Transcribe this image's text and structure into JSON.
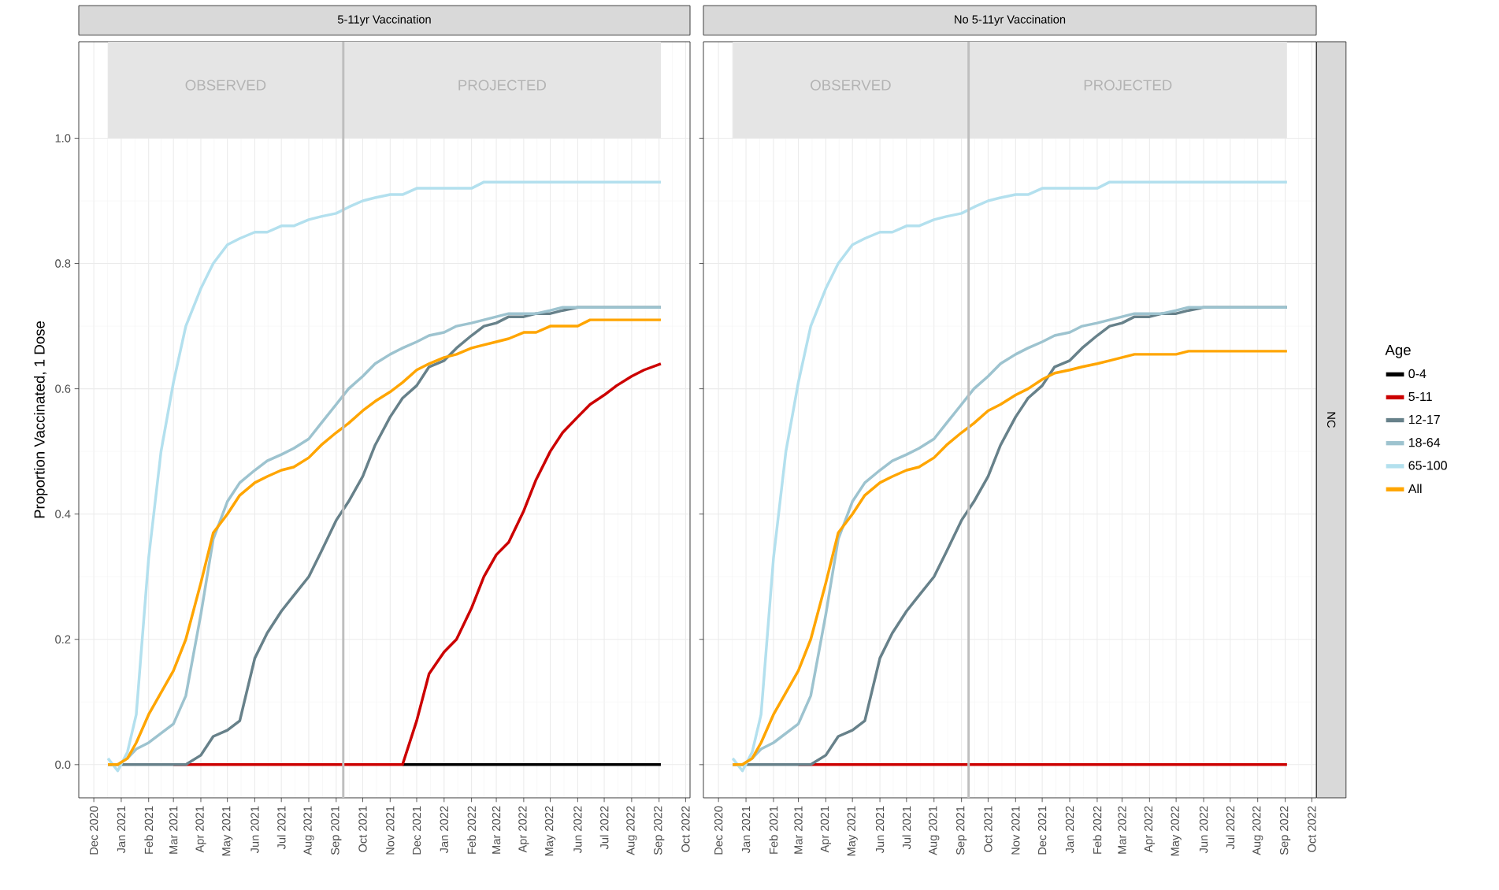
{
  "chart_data": [
    {
      "type": "line",
      "title": "5-11yr Vaccination",
      "ylabel": "Proportion Vaccinated, 1 Dose",
      "x": [
        "2020-12-17",
        "2020-12-28",
        "2021-01-08",
        "2021-01-18",
        "2021-02-01",
        "2021-02-15",
        "2021-03-01",
        "2021-03-15",
        "2021-04-01",
        "2021-04-15",
        "2021-05-01",
        "2021-05-15",
        "2021-06-01",
        "2021-06-15",
        "2021-07-01",
        "2021-07-15",
        "2021-08-01",
        "2021-08-15",
        "2021-09-01",
        "2021-09-15",
        "2021-10-01",
        "2021-10-15",
        "2021-11-01",
        "2021-11-15",
        "2021-12-01",
        "2021-12-15",
        "2022-01-01",
        "2022-01-15",
        "2022-02-01",
        "2022-02-15",
        "2022-03-01",
        "2022-03-15",
        "2022-04-01",
        "2022-04-15",
        "2022-05-01",
        "2022-05-15",
        "2022-06-01",
        "2022-06-15",
        "2022-07-01",
        "2022-07-15",
        "2022-08-01",
        "2022-08-15",
        "2022-09-03"
      ],
      "series": [
        {
          "color": "#000000",
          "values": [
            null,
            null,
            null,
            null,
            null,
            null,
            null,
            null,
            null,
            null,
            null,
            null,
            null,
            null,
            null,
            null,
            null,
            null,
            null,
            null,
            null,
            null,
            null,
            0,
            0,
            0,
            0,
            0,
            0,
            0,
            0,
            0,
            0,
            0,
            0,
            0,
            0,
            0,
            0,
            0,
            0,
            0,
            0
          ]
        },
        {
          "color": "#cc0000",
          "values": [
            null,
            null,
            null,
            null,
            null,
            null,
            0,
            0,
            0,
            0,
            0,
            0,
            0,
            0,
            0,
            0,
            0,
            0,
            0,
            0,
            0,
            0,
            0,
            0,
            0.07,
            0.145,
            0.18,
            0.2,
            0.25,
            0.3,
            0.335,
            0.355,
            0.405,
            0.455,
            0.5,
            0.53,
            0.555,
            0.575,
            0.59,
            0.605,
            0.62,
            0.63,
            0.64
          ]
        },
        {
          "color": "#67818a",
          "values": [
            0,
            0,
            0,
            0,
            0,
            0,
            0,
            0,
            0.015,
            0.045,
            0.055,
            0.07,
            0.17,
            0.21,
            0.245,
            0.27,
            0.3,
            0.34,
            0.39,
            0.42,
            0.46,
            0.51,
            0.555,
            0.585,
            0.605,
            0.635,
            0.645,
            0.665,
            0.685,
            0.7,
            0.705,
            0.715,
            0.715,
            0.72,
            0.72,
            0.725,
            0.73,
            0.73,
            0.73,
            0.73,
            0.73,
            0.73,
            0.73
          ]
        },
        {
          "color": "#9dc3cf",
          "values": [
            0,
            0,
            0.01,
            0.025,
            0.035,
            0.05,
            0.065,
            0.11,
            0.24,
            0.36,
            0.42,
            0.45,
            0.47,
            0.485,
            0.495,
            0.505,
            0.52,
            0.545,
            0.575,
            0.6,
            0.62,
            0.64,
            0.655,
            0.665,
            0.675,
            0.685,
            0.69,
            0.7,
            0.705,
            0.71,
            0.715,
            0.72,
            0.72,
            0.72,
            0.725,
            0.73,
            0.73,
            0.73,
            0.73,
            0.73,
            0.73,
            0.73,
            0.73
          ]
        },
        {
          "color": "#b3e0ee",
          "values": [
            0.01,
            -0.01,
            0.02,
            0.08,
            0.33,
            0.5,
            0.61,
            0.7,
            0.76,
            0.8,
            0.83,
            0.84,
            0.85,
            0.85,
            0.86,
            0.86,
            0.87,
            0.875,
            0.88,
            0.89,
            0.9,
            0.905,
            0.91,
            0.91,
            0.92,
            0.92,
            0.92,
            0.92,
            0.92,
            0.93,
            0.93,
            0.93,
            0.93,
            0.93,
            0.93,
            0.93,
            0.93,
            0.93,
            0.93,
            0.93,
            0.93,
            0.93,
            0.93
          ]
        },
        {
          "color": "#ffa500",
          "values": [
            0,
            0,
            0.01,
            0.035,
            0.08,
            0.115,
            0.15,
            0.2,
            0.29,
            0.37,
            0.4,
            0.43,
            0.45,
            0.46,
            0.47,
            0.475,
            0.49,
            0.51,
            0.53,
            0.545,
            0.565,
            0.58,
            0.595,
            0.61,
            0.63,
            0.64,
            0.65,
            0.655,
            0.665,
            0.67,
            0.675,
            0.68,
            0.69,
            0.69,
            0.7,
            0.7,
            0.7,
            0.71,
            0.71,
            0.71,
            0.71,
            0.71,
            0.71
          ]
        }
      ],
      "xlim": [
        "2020-11-14",
        "2022-10-06"
      ],
      "xticks": [
        {
          "value": "2020-12-01",
          "label": "Dec 2020"
        },
        {
          "value": "2021-01-01",
          "label": "Jan 2021"
        },
        {
          "value": "2021-02-01",
          "label": "Feb 2021"
        },
        {
          "value": "2021-03-01",
          "label": "Mar 2021"
        },
        {
          "value": "2021-04-01",
          "label": "Apr 2021"
        },
        {
          "value": "2021-05-01",
          "label": "May 2021"
        },
        {
          "value": "2021-06-01",
          "label": "Jun 2021"
        },
        {
          "value": "2021-07-01",
          "label": "Jul 2021"
        },
        {
          "value": "2021-08-01",
          "label": "Aug 2021"
        },
        {
          "value": "2021-09-01",
          "label": "Sep 2021"
        },
        {
          "value": "2021-10-01",
          "label": "Oct 2021"
        },
        {
          "value": "2021-11-01",
          "label": "Nov 2021"
        },
        {
          "value": "2021-12-01",
          "label": "Dec 2021"
        },
        {
          "value": "2022-01-01",
          "label": "Jan 2022"
        },
        {
          "value": "2022-02-01",
          "label": "Feb 2022"
        },
        {
          "value": "2022-03-01",
          "label": "Mar 2022"
        },
        {
          "value": "2022-04-01",
          "label": "Apr 2022"
        },
        {
          "value": "2022-05-01",
          "label": "May 2022"
        },
        {
          "value": "2022-06-01",
          "label": "Jun 2022"
        },
        {
          "value": "2022-07-01",
          "label": "Jul 2022"
        },
        {
          "value": "2022-08-01",
          "label": "Aug 2022"
        },
        {
          "value": "2022-09-01",
          "label": "Sep 2022"
        },
        {
          "value": "2022-10-01",
          "label": "Oct 2022"
        }
      ],
      "ylim": [
        -0.053,
        1.154
      ],
      "yticks": [
        {
          "value": 0,
          "label": "0.0"
        },
        0.2,
        0.4,
        0.6,
        0.8,
        {
          "value": 1,
          "label": "1.0"
        }
      ],
      "grid": true,
      "bands": [
        {
          "axis": "x",
          "from": "2020-12-17",
          "to": "2021-09-09",
          "label": "OBSERVED",
          "color": "#e5e5e5"
        },
        {
          "axis": "x",
          "from": "2021-09-09",
          "to": "2022-09-03",
          "label": "PROJECTED",
          "color": "#e5e5e5"
        }
      ],
      "ref_lines": [
        {
          "axis": "x",
          "value": "2021-09-09",
          "color": "#bebebe"
        }
      ]
    },
    {
      "type": "line",
      "title": "No 5-11yr Vaccination",
      "legend_title": "Age",
      "legend": "right",
      "tick_labels": "x",
      "annotations": [
        "NC"
      ],
      "x": [
        "2020-12-17",
        "2020-12-28",
        "2021-01-08",
        "2021-01-18",
        "2021-02-01",
        "2021-02-15",
        "2021-03-01",
        "2021-03-15",
        "2021-04-01",
        "2021-04-15",
        "2021-05-01",
        "2021-05-15",
        "2021-06-01",
        "2021-06-15",
        "2021-07-01",
        "2021-07-15",
        "2021-08-01",
        "2021-08-15",
        "2021-09-01",
        "2021-09-15",
        "2021-10-01",
        "2021-10-15",
        "2021-11-01",
        "2021-11-15",
        "2021-12-01",
        "2021-12-15",
        "2022-01-01",
        "2022-01-15",
        "2022-02-01",
        "2022-02-15",
        "2022-03-01",
        "2022-03-15",
        "2022-04-01",
        "2022-04-15",
        "2022-05-01",
        "2022-05-15",
        "2022-06-01",
        "2022-06-15",
        "2022-07-01",
        "2022-07-15",
        "2022-08-01",
        "2022-08-15",
        "2022-09-03"
      ],
      "series": [
        {
          "name": "0-4",
          "color": "#000000",
          "values": [
            null,
            null,
            null,
            null,
            null,
            null,
            null,
            null,
            null,
            null,
            null,
            null,
            null,
            null,
            null,
            null,
            null,
            null,
            null,
            null,
            null,
            null,
            null,
            null,
            null,
            null,
            null,
            null,
            null,
            null,
            null,
            null,
            null,
            null,
            null,
            null,
            null,
            null,
            null,
            null,
            null,
            null,
            null
          ]
        },
        {
          "name": "5-11",
          "color": "#cc0000",
          "values": [
            null,
            null,
            null,
            null,
            null,
            null,
            0,
            0,
            0,
            0,
            0,
            0,
            0,
            0,
            0,
            0,
            0,
            0,
            0,
            0,
            0,
            0,
            0,
            0,
            0,
            0,
            0,
            0,
            0,
            0,
            0,
            0,
            0,
            0,
            0,
            0,
            0,
            0,
            0,
            0,
            0,
            0,
            0
          ]
        },
        {
          "name": "12-17",
          "color": "#67818a",
          "values": [
            0,
            0,
            0,
            0,
            0,
            0,
            0,
            0,
            0.015,
            0.045,
            0.055,
            0.07,
            0.17,
            0.21,
            0.245,
            0.27,
            0.3,
            0.34,
            0.39,
            0.42,
            0.46,
            0.51,
            0.555,
            0.585,
            0.605,
            0.635,
            0.645,
            0.665,
            0.685,
            0.7,
            0.705,
            0.715,
            0.715,
            0.72,
            0.72,
            0.725,
            0.73,
            0.73,
            0.73,
            0.73,
            0.73,
            0.73,
            0.73
          ]
        },
        {
          "name": "18-64",
          "color": "#9dc3cf",
          "values": [
            0,
            0,
            0.01,
            0.025,
            0.035,
            0.05,
            0.065,
            0.11,
            0.24,
            0.36,
            0.42,
            0.45,
            0.47,
            0.485,
            0.495,
            0.505,
            0.52,
            0.545,
            0.575,
            0.6,
            0.62,
            0.64,
            0.655,
            0.665,
            0.675,
            0.685,
            0.69,
            0.7,
            0.705,
            0.71,
            0.715,
            0.72,
            0.72,
            0.72,
            0.725,
            0.73,
            0.73,
            0.73,
            0.73,
            0.73,
            0.73,
            0.73,
            0.73
          ]
        },
        {
          "name": "65-100",
          "color": "#b3e0ee",
          "values": [
            0.01,
            -0.01,
            0.02,
            0.08,
            0.33,
            0.5,
            0.61,
            0.7,
            0.76,
            0.8,
            0.83,
            0.84,
            0.85,
            0.85,
            0.86,
            0.86,
            0.87,
            0.875,
            0.88,
            0.89,
            0.9,
            0.905,
            0.91,
            0.91,
            0.92,
            0.92,
            0.92,
            0.92,
            0.92,
            0.93,
            0.93,
            0.93,
            0.93,
            0.93,
            0.93,
            0.93,
            0.93,
            0.93,
            0.93,
            0.93,
            0.93,
            0.93,
            0.93
          ]
        },
        {
          "name": "All",
          "color": "#ffa500",
          "values": [
            0,
            0,
            0.01,
            0.035,
            0.08,
            0.115,
            0.15,
            0.2,
            0.29,
            0.37,
            0.4,
            0.43,
            0.45,
            0.46,
            0.47,
            0.475,
            0.49,
            0.51,
            0.53,
            0.545,
            0.565,
            0.575,
            0.59,
            0.6,
            0.615,
            0.625,
            0.63,
            0.635,
            0.64,
            0.645,
            0.65,
            0.655,
            0.655,
            0.655,
            0.655,
            0.66,
            0.66,
            0.66,
            0.66,
            0.66,
            0.66,
            0.66,
            0.66
          ]
        }
      ],
      "xlim": [
        "2020-11-14",
        "2022-10-06"
      ],
      "xticks": [
        {
          "value": "2020-12-01",
          "label": "Dec 2020"
        },
        {
          "value": "2021-01-01",
          "label": "Jan 2021"
        },
        {
          "value": "2021-02-01",
          "label": "Feb 2021"
        },
        {
          "value": "2021-03-01",
          "label": "Mar 2021"
        },
        {
          "value": "2021-04-01",
          "label": "Apr 2021"
        },
        {
          "value": "2021-05-01",
          "label": "May 2021"
        },
        {
          "value": "2021-06-01",
          "label": "Jun 2021"
        },
        {
          "value": "2021-07-01",
          "label": "Jul 2021"
        },
        {
          "value": "2021-08-01",
          "label": "Aug 2021"
        },
        {
          "value": "2021-09-01",
          "label": "Sep 2021"
        },
        {
          "value": "2021-10-01",
          "label": "Oct 2021"
        },
        {
          "value": "2021-11-01",
          "label": "Nov 2021"
        },
        {
          "value": "2021-12-01",
          "label": "Dec 2021"
        },
        {
          "value": "2022-01-01",
          "label": "Jan 2022"
        },
        {
          "value": "2022-02-01",
          "label": "Feb 2022"
        },
        {
          "value": "2022-03-01",
          "label": "Mar 2022"
        },
        {
          "value": "2022-04-01",
          "label": "Apr 2022"
        },
        {
          "value": "2022-05-01",
          "label": "May 2022"
        },
        {
          "value": "2022-06-01",
          "label": "Jun 2022"
        },
        {
          "value": "2022-07-01",
          "label": "Jul 2022"
        },
        {
          "value": "2022-08-01",
          "label": "Aug 2022"
        },
        {
          "value": "2022-09-01",
          "label": "Sep 2022"
        },
        {
          "value": "2022-10-01",
          "label": "Oct 2022"
        }
      ],
      "ylim": [
        -0.053,
        1.154
      ],
      "yticks": [
        0,
        0.2,
        0.4,
        0.6,
        0.8,
        1
      ],
      "grid": true,
      "bands": [
        {
          "axis": "x",
          "from": "2020-12-17",
          "to": "2021-09-09",
          "label": "OBSERVED",
          "color": "#e5e5e5"
        },
        {
          "axis": "x",
          "from": "2021-09-09",
          "to": "2022-09-03",
          "label": "PROJECTED",
          "color": "#e5e5e5"
        }
      ],
      "ref_lines": [
        {
          "axis": "x",
          "value": "2021-09-09",
          "color": "#bebebe"
        }
      ]
    }
  ]
}
